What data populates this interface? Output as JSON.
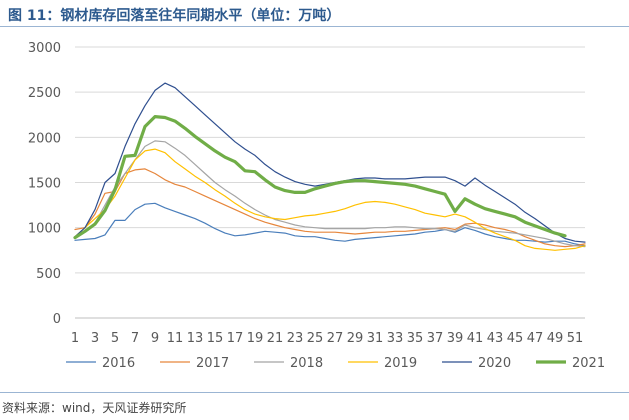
{
  "header": {
    "title": "图 11：钢材库存回落至往年同期水平（单位：万吨）"
  },
  "footer": {
    "source": "资料来源：wind，天风证券研究所"
  },
  "chart_data": {
    "type": "line",
    "title": "",
    "xlabel": "",
    "ylabel": "",
    "ylim": [
      0,
      3000
    ],
    "xlim": [
      1,
      52
    ],
    "yticks": [
      0,
      500,
      1000,
      1500,
      2000,
      2500,
      3000
    ],
    "xticks": [
      1,
      3,
      5,
      7,
      9,
      11,
      13,
      15,
      17,
      19,
      21,
      23,
      25,
      27,
      29,
      31,
      33,
      35,
      37,
      39,
      41,
      43,
      45,
      47,
      49,
      51
    ],
    "grid": "horizontal",
    "legend_position": "bottom",
    "series": [
      {
        "name": "2016",
        "color": "#4a7ebb",
        "width": 1.2,
        "x": [
          1,
          2,
          3,
          4,
          5,
          6,
          7,
          8,
          9,
          10,
          11,
          12,
          13,
          14,
          15,
          16,
          17,
          18,
          19,
          20,
          21,
          22,
          23,
          24,
          25,
          26,
          27,
          28,
          29,
          30,
          31,
          32,
          33,
          34,
          35,
          36,
          37,
          38,
          39,
          40,
          41,
          42,
          43,
          44,
          45,
          46,
          47,
          48,
          49,
          50,
          51,
          52
        ],
        "values": [
          860,
          870,
          880,
          920,
          1080,
          1080,
          1200,
          1260,
          1270,
          1220,
          1180,
          1140,
          1100,
          1050,
          990,
          940,
          910,
          920,
          940,
          960,
          950,
          940,
          910,
          900,
          900,
          880,
          860,
          850,
          870,
          880,
          890,
          900,
          910,
          920,
          930,
          950,
          960,
          980,
          950,
          1000,
          970,
          930,
          900,
          880,
          860,
          860,
          850,
          840,
          850,
          850,
          820,
          800
        ]
      },
      {
        "name": "2017",
        "color": "#e6863c",
        "width": 1.2,
        "x": [
          1,
          2,
          3,
          4,
          5,
          6,
          7,
          8,
          9,
          10,
          11,
          12,
          13,
          14,
          15,
          16,
          17,
          18,
          19,
          20,
          21,
          22,
          23,
          24,
          25,
          26,
          27,
          28,
          29,
          30,
          31,
          32,
          33,
          34,
          35,
          36,
          37,
          38,
          39,
          40,
          41,
          42,
          43,
          44,
          45,
          46,
          47,
          48,
          49,
          50,
          51,
          52
        ],
        "values": [
          980,
          1000,
          1150,
          1380,
          1400,
          1600,
          1640,
          1650,
          1600,
          1530,
          1480,
          1450,
          1400,
          1350,
          1300,
          1250,
          1200,
          1150,
          1100,
          1060,
          1030,
          1000,
          980,
          960,
          950,
          950,
          950,
          940,
          930,
          940,
          950,
          950,
          960,
          960,
          970,
          980,
          990,
          1000,
          980,
          1040,
          1050,
          1030,
          1000,
          980,
          950,
          900,
          860,
          820,
          800,
          790,
          800,
          820
        ]
      },
      {
        "name": "2018",
        "color": "#a5a5a5",
        "width": 1.2,
        "x": [
          1,
          2,
          3,
          4,
          5,
          6,
          7,
          8,
          9,
          10,
          11,
          12,
          13,
          14,
          15,
          16,
          17,
          18,
          19,
          20,
          21,
          22,
          23,
          24,
          25,
          26,
          27,
          28,
          29,
          30,
          31,
          32,
          33,
          34,
          35,
          36,
          37,
          38,
          39,
          40,
          41,
          42,
          43,
          44,
          45,
          46,
          47,
          48,
          49,
          50,
          51,
          52
        ],
        "values": [
          900,
          950,
          1050,
          1250,
          1450,
          1600,
          1750,
          1900,
          1960,
          1950,
          1880,
          1800,
          1700,
          1600,
          1500,
          1420,
          1350,
          1270,
          1200,
          1140,
          1090,
          1060,
          1030,
          1010,
          1000,
          990,
          990,
          990,
          990,
          990,
          1000,
          1000,
          1010,
          1010,
          1000,
          990,
          990,
          980,
          960,
          1030,
          1000,
          980,
          960,
          950,
          940,
          920,
          900,
          880,
          850,
          820,
          800,
          790
        ]
      },
      {
        "name": "2019",
        "color": "#ffc000",
        "width": 1.2,
        "x": [
          1,
          2,
          3,
          4,
          5,
          6,
          7,
          8,
          9,
          10,
          11,
          12,
          13,
          14,
          15,
          16,
          17,
          18,
          19,
          20,
          21,
          22,
          23,
          24,
          25,
          26,
          27,
          28,
          29,
          30,
          31,
          32,
          33,
          34,
          35,
          36,
          37,
          38,
          39,
          40,
          41,
          42,
          43,
          44,
          45,
          46,
          47,
          48,
          49,
          50,
          51,
          52
        ],
        "values": [
          900,
          1000,
          1100,
          1200,
          1350,
          1550,
          1750,
          1850,
          1870,
          1830,
          1730,
          1650,
          1570,
          1500,
          1420,
          1350,
          1270,
          1200,
          1150,
          1120,
          1100,
          1090,
          1110,
          1130,
          1140,
          1160,
          1180,
          1210,
          1250,
          1280,
          1290,
          1280,
          1260,
          1230,
          1200,
          1160,
          1140,
          1120,
          1150,
          1120,
          1060,
          990,
          940,
          900,
          860,
          800,
          770,
          760,
          750,
          760,
          770,
          800
        ]
      },
      {
        "name": "2020",
        "color": "#2f4f8f",
        "width": 1.2,
        "x": [
          1,
          2,
          3,
          4,
          5,
          6,
          7,
          8,
          9,
          10,
          11,
          12,
          13,
          14,
          15,
          16,
          17,
          18,
          19,
          20,
          21,
          22,
          23,
          24,
          25,
          26,
          27,
          28,
          29,
          30,
          31,
          32,
          33,
          34,
          35,
          36,
          37,
          38,
          39,
          40,
          41,
          42,
          43,
          44,
          45,
          46,
          47,
          48,
          49,
          50,
          51,
          52
        ],
        "values": [
          900,
          1000,
          1200,
          1500,
          1600,
          1900,
          2150,
          2350,
          2520,
          2600,
          2550,
          2450,
          2350,
          2250,
          2150,
          2050,
          1950,
          1870,
          1800,
          1700,
          1620,
          1560,
          1510,
          1480,
          1460,
          1480,
          1500,
          1520,
          1540,
          1550,
          1550,
          1540,
          1540,
          1540,
          1550,
          1560,
          1560,
          1560,
          1520,
          1460,
          1550,
          1470,
          1400,
          1330,
          1260,
          1170,
          1100,
          1020,
          940,
          880,
          850,
          840
        ]
      },
      {
        "name": "2021",
        "color": "#70ad47",
        "width": 3.2,
        "x": [
          1,
          2,
          3,
          4,
          5,
          6,
          7,
          8,
          9,
          10,
          11,
          12,
          13,
          14,
          15,
          16,
          17,
          18,
          19,
          20,
          21,
          22,
          23,
          24,
          25,
          26,
          27,
          28,
          29,
          30,
          31,
          32,
          33,
          34,
          35,
          36,
          37,
          38,
          39,
          40,
          41,
          42,
          43,
          44,
          45,
          46,
          47,
          48,
          49,
          50
        ],
        "values": [
          890,
          960,
          1040,
          1190,
          1420,
          1790,
          1800,
          2120,
          2230,
          2220,
          2180,
          2100,
          2010,
          1930,
          1850,
          1780,
          1730,
          1630,
          1620,
          1530,
          1450,
          1410,
          1390,
          1390,
          1430,
          1460,
          1490,
          1510,
          1520,
          1520,
          1510,
          1500,
          1490,
          1480,
          1460,
          1430,
          1400,
          1370,
          1180,
          1320,
          1260,
          1210,
          1180,
          1150,
          1120,
          1060,
          1020,
          980,
          940,
          910
        ]
      }
    ]
  }
}
